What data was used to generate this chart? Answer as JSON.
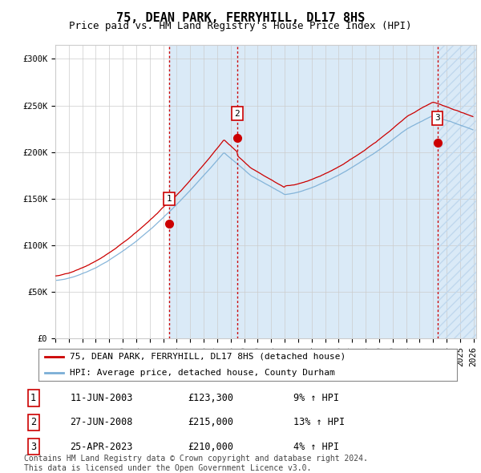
{
  "title": "75, DEAN PARK, FERRYHILL, DL17 8HS",
  "subtitle": "Price paid vs. HM Land Registry's House Price Index (HPI)",
  "ylabel_ticks": [
    "£0",
    "£50K",
    "£100K",
    "£150K",
    "£200K",
    "£250K",
    "£300K"
  ],
  "ytick_values": [
    0,
    50000,
    100000,
    150000,
    200000,
    250000,
    300000
  ],
  "ylim": [
    0,
    315000
  ],
  "xlim_start": 1995.0,
  "xlim_end": 2026.2,
  "sale_dates": [
    2003.44,
    2008.49,
    2023.32
  ],
  "sale_prices": [
    123300,
    215000,
    210000
  ],
  "sale_labels": [
    "1",
    "2",
    "3"
  ],
  "red_line_color": "#cc0000",
  "blue_line_color": "#7aaed6",
  "sale_marker_color": "#cc0000",
  "vline_color": "#cc0000",
  "shade_color": "#daeaf7",
  "hatch_color": "#c0d8ee",
  "grid_color": "#cccccc",
  "background_color": "#ffffff",
  "legend_label_red": "75, DEAN PARK, FERRYHILL, DL17 8HS (detached house)",
  "legend_label_blue": "HPI: Average price, detached house, County Durham",
  "table_rows": [
    [
      "1",
      "11-JUN-2003",
      "£123,300",
      "9% ↑ HPI"
    ],
    [
      "2",
      "27-JUN-2008",
      "£215,000",
      "13% ↑ HPI"
    ],
    [
      "3",
      "25-APR-2023",
      "£210,000",
      "4% ↑ HPI"
    ]
  ],
  "footnote": "Contains HM Land Registry data © Crown copyright and database right 2024.\nThis data is licensed under the Open Government Licence v3.0.",
  "title_fontsize": 11,
  "subtitle_fontsize": 9,
  "tick_fontsize": 7.5,
  "legend_fontsize": 8,
  "table_fontsize": 8.5,
  "footnote_fontsize": 7
}
